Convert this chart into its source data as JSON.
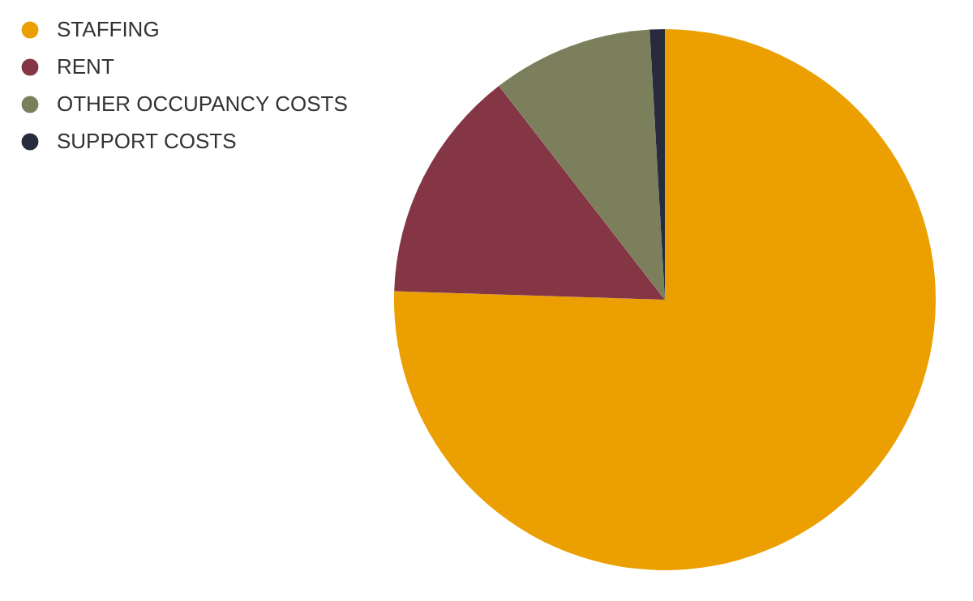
{
  "chart_data": {
    "type": "pie",
    "categories": [
      "STAFFING",
      "RENT",
      "OTHER OCCUPANCY COSTS",
      "SUPPORT COSTS"
    ],
    "values": [
      75.5,
      14,
      9.6,
      0.9
    ],
    "colors": [
      "#eb9f00",
      "#843645",
      "#7b7f5b",
      "#262c3c"
    ],
    "legend": "top left"
  }
}
